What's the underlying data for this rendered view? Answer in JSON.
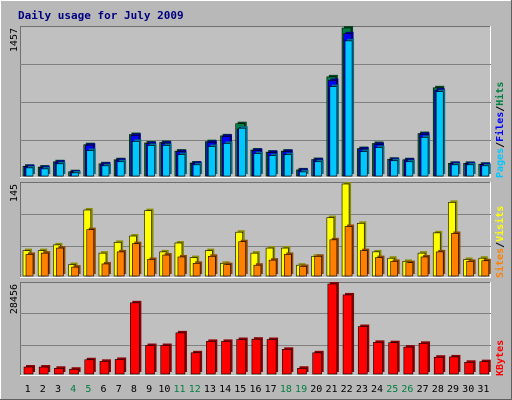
{
  "title": "Daily usage for July 2009",
  "colors": {
    "background": "#b8b8b8",
    "plot": "#c0c0c0",
    "grid": "#808080",
    "hits": "#008040",
    "files": "#0000ff",
    "pages": "#00c8ff",
    "visits": "#ffff00",
    "sites": "#ff8000",
    "kbytes": "#ff0000",
    "weekday_label": "#000000",
    "weekend_label": "#008040",
    "title": "#000080"
  },
  "chart_data": [
    {
      "type": "bar",
      "panel": "top",
      "max_label": "1457",
      "ylim": [
        0,
        1457
      ],
      "categories": [
        "1",
        "2",
        "3",
        "4",
        "5",
        "6",
        "7",
        "8",
        "9",
        "10",
        "11",
        "12",
        "13",
        "14",
        "15",
        "16",
        "17",
        "18",
        "19",
        "20",
        "21",
        "22",
        "23",
        "24",
        "25",
        "26",
        "27",
        "28",
        "29",
        "30",
        "31"
      ],
      "weekend_days": [
        "4",
        "5",
        "11",
        "12",
        "18",
        "19",
        "25",
        "26"
      ],
      "legend": [
        {
          "text": "Hits",
          "color": "#008040"
        },
        {
          "text": "Files",
          "color": "#0000ff"
        },
        {
          "text": "Pages",
          "color": "#00c8ff"
        }
      ],
      "series": [
        {
          "name": "Hits",
          "values": [
            96,
            88,
            140,
            42,
            308,
            120,
            160,
            408,
            325,
            330,
            245,
            128,
            338,
            395,
            515,
            256,
            235,
            245,
            60,
            162,
            976,
            1457,
            270,
            320,
            165,
            160,
            418,
            868,
            125,
            124,
            116
          ]
        },
        {
          "name": "Files",
          "values": [
            92,
            82,
            136,
            38,
            302,
            116,
            155,
            400,
            318,
            322,
            238,
            124,
            330,
            390,
            462,
            250,
            230,
            240,
            55,
            156,
            940,
            1400,
            265,
            310,
            160,
            155,
            410,
            845,
            122,
            120,
            112
          ]
        },
        {
          "name": "Pages",
          "values": [
            80,
            70,
            120,
            30,
            250,
            100,
            140,
            340,
            300,
            300,
            210,
            110,
            290,
            320,
            470,
            220,
            200,
            210,
            40,
            140,
            880,
            1330,
            240,
            280,
            150,
            140,
            380,
            830,
            110,
            110,
            100
          ]
        }
      ]
    },
    {
      "type": "bar",
      "panel": "middle",
      "max_label": "145",
      "ylim": [
        0,
        145
      ],
      "categories": [
        "1",
        "2",
        "3",
        "4",
        "5",
        "6",
        "7",
        "8",
        "9",
        "10",
        "11",
        "12",
        "13",
        "14",
        "15",
        "16",
        "17",
        "18",
        "19",
        "20",
        "21",
        "22",
        "23",
        "24",
        "25",
        "26",
        "27",
        "28",
        "29",
        "30",
        "31"
      ],
      "legend": [
        {
          "text": "Visits",
          "color": "#ffff00"
        },
        {
          "text": "Sites",
          "color": "#ff8000"
        }
      ],
      "series": [
        {
          "name": "Visits",
          "values": [
            40,
            40,
            49,
            18,
            104,
            36,
            53,
            63,
            103,
            38,
            52,
            29,
            40,
            20,
            69,
            36,
            44,
            44,
            17,
            31,
            92,
            145,
            83,
            38,
            28,
            23,
            36,
            68,
            116,
            26,
            28
          ]
        },
        {
          "name": "Sites",
          "values": [
            34,
            36,
            44,
            14,
            73,
            19,
            38,
            51,
            26,
            33,
            30,
            20,
            31,
            18,
            54,
            17,
            25,
            34,
            15,
            31,
            57,
            78,
            40,
            29,
            23,
            21,
            30,
            38,
            67,
            23,
            24
          ]
        }
      ]
    },
    {
      "type": "bar",
      "panel": "bottom",
      "max_label": "28456",
      "ylim": [
        0,
        28456
      ],
      "categories": [
        "1",
        "2",
        "3",
        "4",
        "5",
        "6",
        "7",
        "8",
        "9",
        "10",
        "11",
        "12",
        "13",
        "14",
        "15",
        "16",
        "17",
        "18",
        "19",
        "20",
        "21",
        "22",
        "23",
        "24",
        "25",
        "26",
        "27",
        "28",
        "29",
        "30",
        "31"
      ],
      "legend": [
        {
          "text": "KBytes",
          "color": "#ff0000"
        }
      ],
      "series": [
        {
          "name": "KBytes",
          "values": [
            2200,
            2200,
            1800,
            1500,
            4500,
            4000,
            4600,
            22500,
            9000,
            9000,
            13000,
            6700,
            10300,
            10300,
            10900,
            11000,
            10900,
            7800,
            1800,
            6700,
            28456,
            25000,
            15000,
            10000,
            9900,
            8500,
            9700,
            5300,
            5400,
            3700,
            3900
          ]
        }
      ]
    }
  ]
}
